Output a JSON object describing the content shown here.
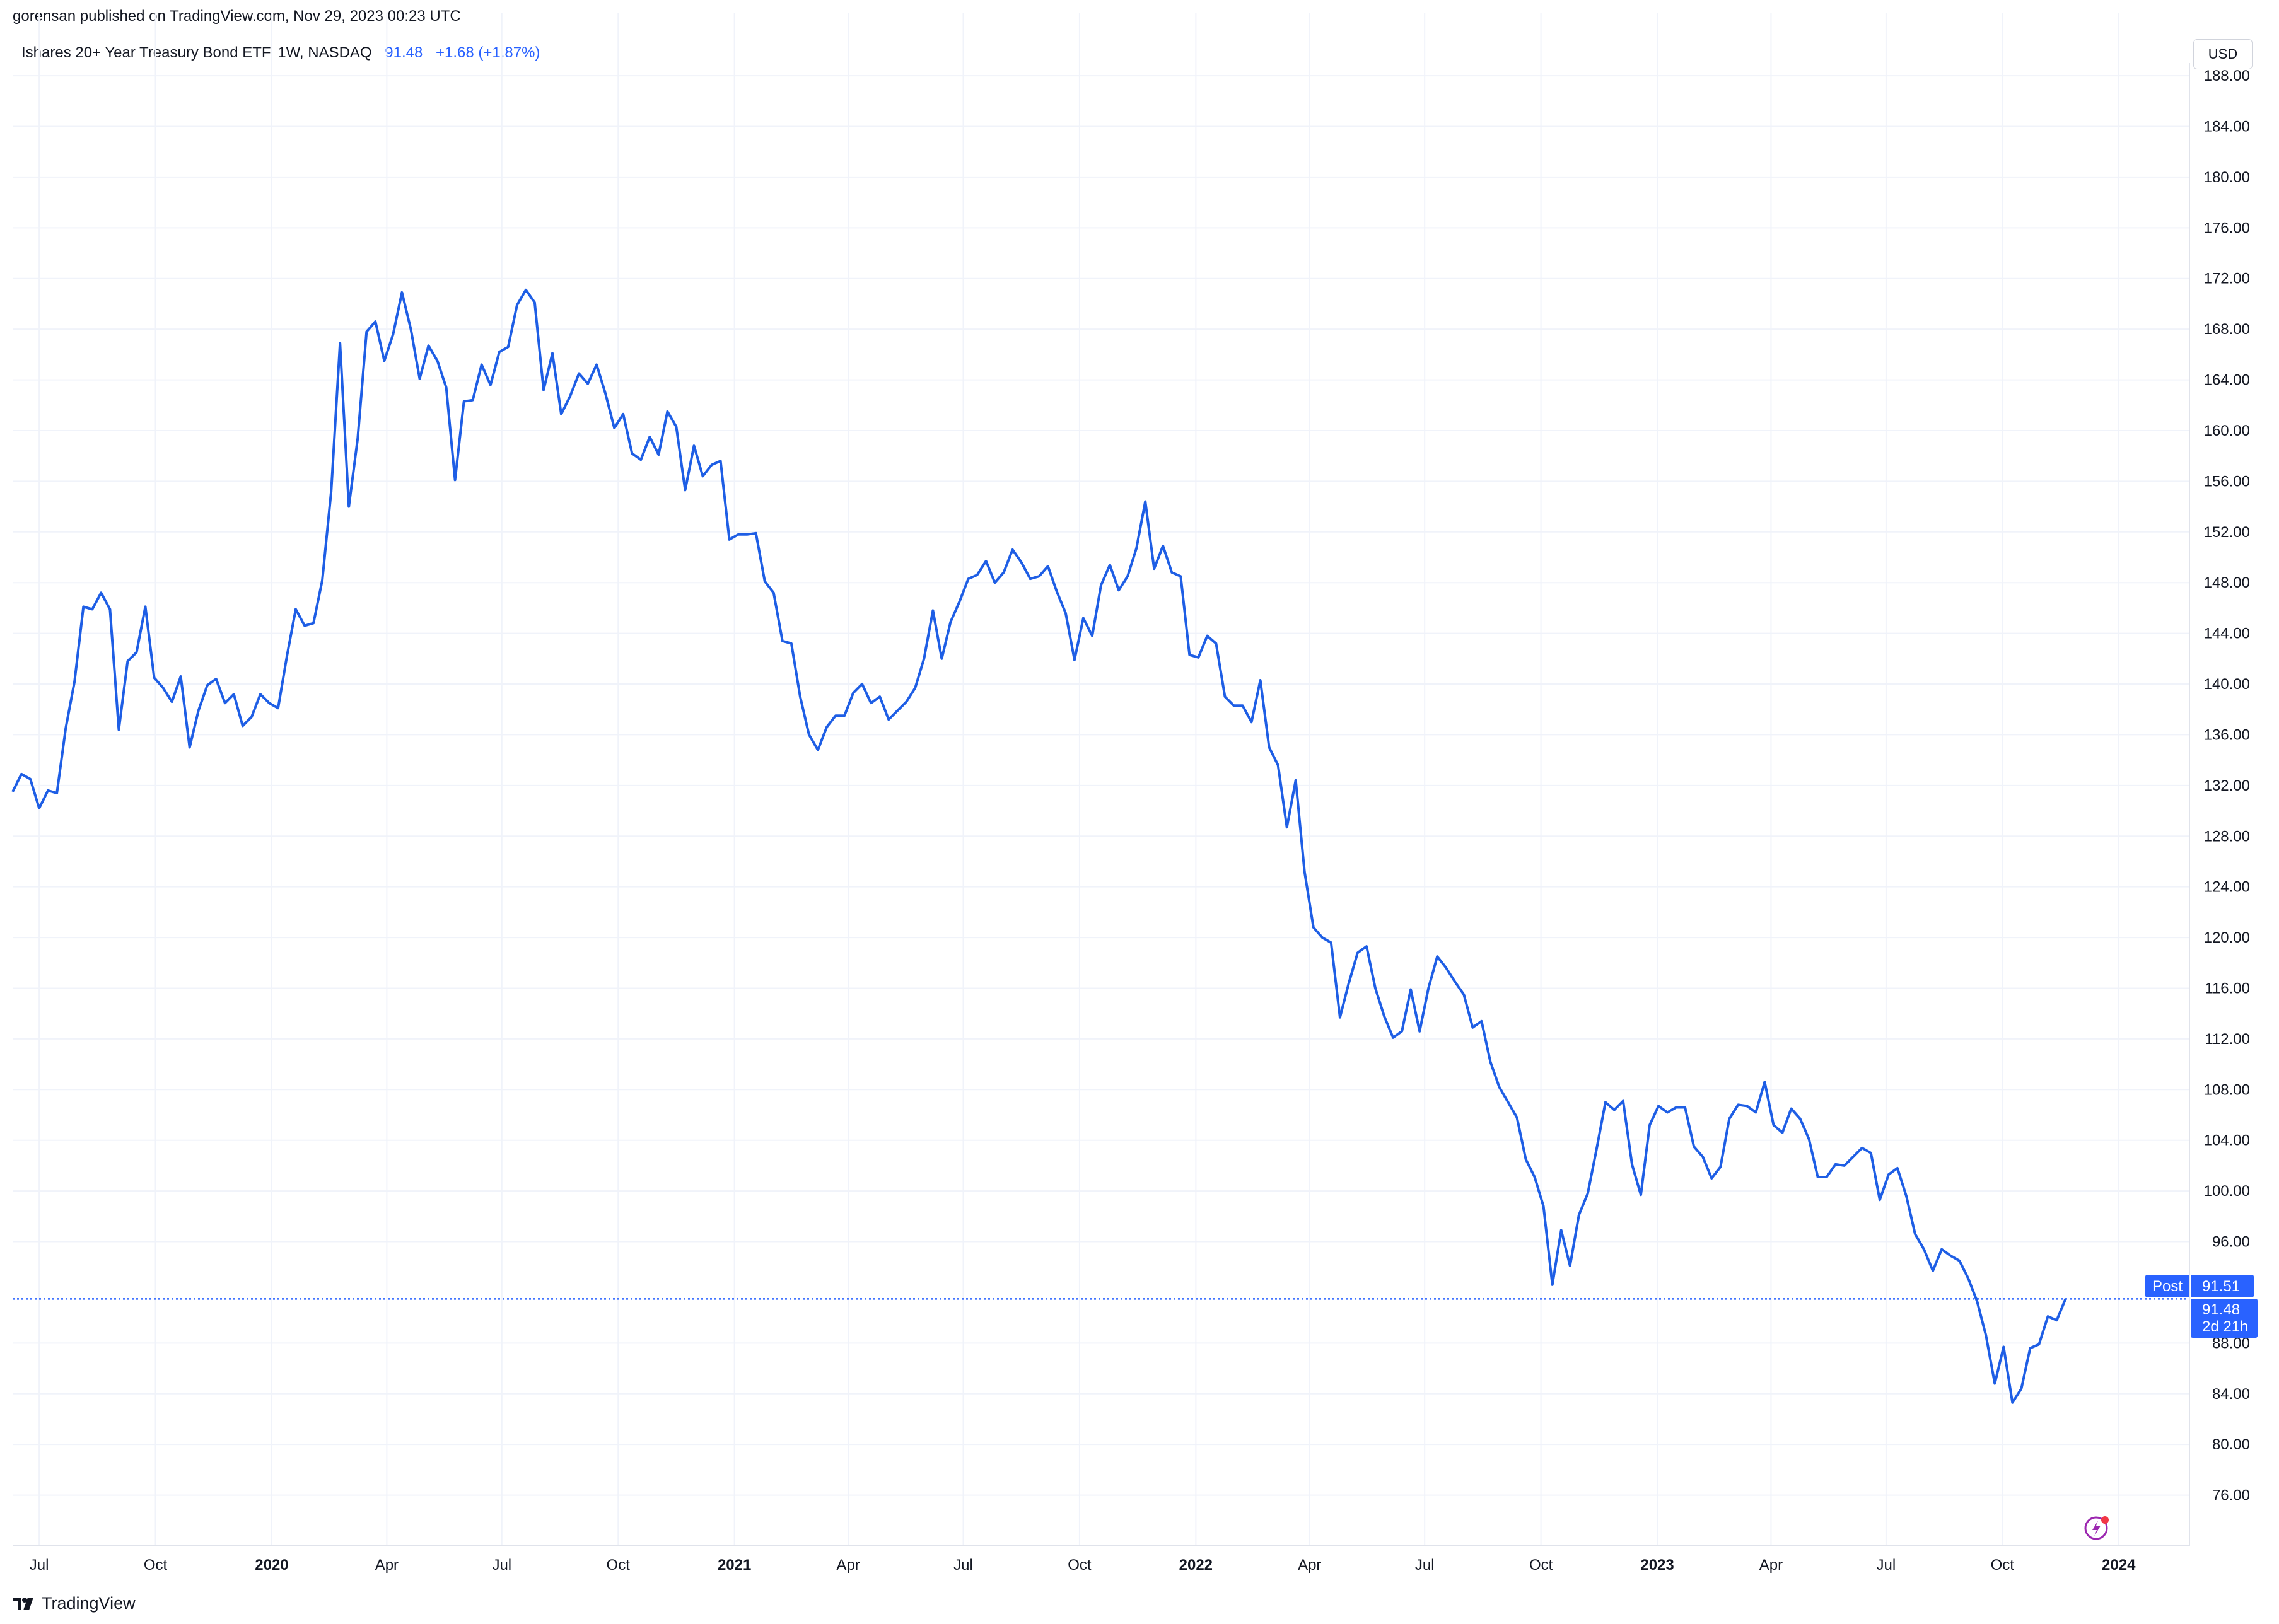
{
  "publisher_line": "gorensan published on TradingView.com, Nov 29, 2023 00:23 UTC",
  "legend": {
    "symbol_text": "Ishares 20+ Year Treasury Bond ETF, 1W, NASDAQ",
    "last_price": "91.48",
    "change": "+1.68 (+1.87%)"
  },
  "currency_label": "USD",
  "brand_label": "TradingView",
  "colors": {
    "line": "#1e5ee5",
    "accent": "#2962ff",
    "grid": "#f0f3fa",
    "text": "#131722"
  },
  "icons": {
    "brand": "tradingview-logo-icon",
    "flash": "lightning-icon"
  },
  "price_tags": {
    "post_label": "Post",
    "post_price": "91.51",
    "last_price": "91.48",
    "countdown": "2d 21h"
  },
  "chart_data": {
    "type": "line",
    "title": "",
    "xlabel": "",
    "ylabel": "",
    "ylim": [
      72,
      189
    ],
    "xlim": [
      "2019-06-10",
      "2024-02-26"
    ],
    "grid": true,
    "y_ticks": [
      "76.00",
      "80.00",
      "84.00",
      "88.00",
      "96.00",
      "100.00",
      "104.00",
      "108.00",
      "112.00",
      "116.00",
      "120.00",
      "124.00",
      "128.00",
      "132.00",
      "136.00",
      "140.00",
      "144.00",
      "148.00",
      "152.00",
      "156.00",
      "160.00",
      "164.00",
      "168.00",
      "172.00",
      "176.00",
      "180.00",
      "184.00",
      "188.00"
    ],
    "x_ticks": [
      {
        "label": "Jul",
        "date": "2019-07-01",
        "bold": false
      },
      {
        "label": "Oct",
        "date": "2019-10-01",
        "bold": false
      },
      {
        "label": "2020",
        "date": "2020-01-01",
        "bold": true
      },
      {
        "label": "Apr",
        "date": "2020-04-01",
        "bold": false
      },
      {
        "label": "Jul",
        "date": "2020-07-01",
        "bold": false
      },
      {
        "label": "Oct",
        "date": "2020-10-01",
        "bold": false
      },
      {
        "label": "2021",
        "date": "2021-01-01",
        "bold": true
      },
      {
        "label": "Apr",
        "date": "2021-04-01",
        "bold": false
      },
      {
        "label": "Jul",
        "date": "2021-07-01",
        "bold": false
      },
      {
        "label": "Oct",
        "date": "2021-10-01",
        "bold": false
      },
      {
        "label": "2022",
        "date": "2022-01-01",
        "bold": true
      },
      {
        "label": "Apr",
        "date": "2022-04-01",
        "bold": false
      },
      {
        "label": "Jul",
        "date": "2022-07-01",
        "bold": false
      },
      {
        "label": "Oct",
        "date": "2022-10-01",
        "bold": false
      },
      {
        "label": "2023",
        "date": "2023-01-01",
        "bold": true
      },
      {
        "label": "Apr",
        "date": "2023-04-01",
        "bold": false
      },
      {
        "label": "Jul",
        "date": "2023-07-01",
        "bold": false
      },
      {
        "label": "Oct",
        "date": "2023-10-01",
        "bold": false
      },
      {
        "label": "2024",
        "date": "2024-01-01",
        "bold": true
      }
    ],
    "series": [
      {
        "start_date": "2019-06-10",
        "interval_days": 7,
        "values": [
          131.5,
          132.9,
          132.5,
          130.2,
          131.6,
          131.4,
          136.5,
          140.2,
          146.1,
          145.9,
          147.2,
          145.9,
          136.4,
          141.8,
          142.5,
          146.1,
          140.5,
          139.7,
          138.6,
          140.6,
          135.0,
          137.9,
          139.9,
          140.4,
          138.5,
          139.2,
          136.7,
          137.4,
          139.2,
          138.5,
          138.1,
          142.2,
          145.9,
          144.6,
          144.8,
          148.2,
          155.2,
          166.9,
          154.0,
          159.4,
          167.8,
          168.6,
          165.5,
          167.6,
          170.9,
          168.0,
          164.1,
          166.7,
          165.5,
          163.4,
          156.1,
          162.3,
          162.4,
          165.2,
          163.6,
          166.2,
          166.6,
          169.9,
          171.1,
          170.1,
          163.2,
          166.1,
          161.3,
          162.7,
          164.5,
          163.7,
          165.2,
          162.9,
          160.2,
          161.3,
          158.2,
          157.7,
          159.5,
          158.1,
          161.5,
          160.3,
          155.3,
          158.8,
          156.4,
          157.3,
          157.6,
          151.4,
          151.8,
          151.8,
          151.9,
          148.1,
          147.2,
          143.4,
          143.2,
          139.0,
          136.0,
          134.8,
          136.6,
          137.5,
          137.5,
          139.3,
          140.0,
          138.5,
          139.0,
          137.2,
          137.9,
          138.6,
          139.7,
          142.0,
          145.8,
          142.0,
          144.9,
          146.5,
          148.3,
          148.6,
          149.7,
          148.0,
          148.8,
          150.6,
          149.6,
          148.3,
          148.5,
          149.3,
          147.3,
          145.6,
          141.9,
          145.2,
          143.8,
          147.8,
          149.4,
          147.4,
          148.5,
          150.7,
          154.4,
          149.1,
          150.9,
          148.8,
          148.5,
          142.3,
          142.1,
          143.8,
          143.2,
          139.0,
          138.3,
          138.3,
          137.0,
          140.3,
          135.0,
          133.6,
          128.7,
          132.4,
          125.2,
          120.8,
          120.0,
          119.6,
          113.7,
          116.4,
          118.8,
          119.3,
          116.0,
          113.8,
          112.1,
          112.6,
          115.9,
          112.6,
          116.0,
          118.5,
          117.6,
          116.5,
          115.5,
          112.9,
          113.4,
          110.2,
          108.2,
          107.0,
          105.8,
          102.5,
          101.1,
          98.8,
          92.6,
          96.9,
          94.1,
          98.1,
          99.8,
          103.3,
          107.0,
          106.4,
          107.1,
          102.1,
          99.7,
          105.2,
          106.7,
          106.2,
          106.6,
          106.6,
          103.5,
          102.7,
          101.0,
          101.9,
          105.7,
          106.8,
          106.7,
          106.2,
          108.6,
          105.2,
          104.6,
          106.5,
          105.7,
          104.1,
          101.1,
          101.1,
          102.1,
          102.0,
          102.7,
          103.4,
          103.0,
          99.3,
          101.3,
          101.8,
          99.6,
          96.6,
          95.4,
          93.7,
          95.4,
          94.9,
          94.5,
          93.1,
          91.3,
          88.6,
          84.8,
          87.7,
          83.3,
          84.4,
          87.6,
          87.9,
          90.1,
          89.8,
          91.48
        ]
      }
    ]
  }
}
